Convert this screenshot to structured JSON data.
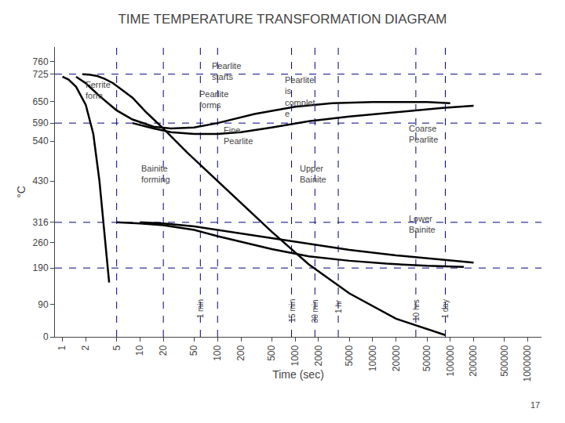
{
  "chart_data": {
    "type": "line",
    "title": "TIME TEMPERATURE TRANSFORMATION DIAGRAM",
    "xlabel": "Time (sec)",
    "ylabel": "°C",
    "log": "x",
    "grid": false,
    "xlim": [
      0.8,
      1500000
    ],
    "ylim": [
      0,
      800
    ],
    "xticks": [
      1,
      2,
      5,
      10,
      20,
      50,
      100,
      200,
      500,
      1000,
      2000,
      5000,
      10000,
      20000,
      50000,
      100000,
      200000,
      500000,
      1000000
    ],
    "yticks": [
      0,
      90,
      190,
      260,
      316,
      430,
      540,
      590,
      650,
      725,
      760
    ],
    "series": [
      {
        "color": "#000000",
        "x": [
          1.0,
          1.2,
          1.5,
          2.0,
          2.5,
          3.0,
          4.0
        ],
        "values": [
          718,
          710,
          690,
          640,
          560,
          430,
          150
        ]
      },
      {
        "color": "#000000",
        "x": [
          1.8,
          2.2,
          2.8,
          3.5,
          4.5,
          6.0,
          8.0,
          12.0,
          20.0,
          40.0,
          80.0,
          200.0,
          500.0,
          1500.0,
          5000.0,
          20000.0,
          86400.0
        ],
        "values": [
          725,
          724,
          720,
          712,
          700,
          680,
          660,
          620,
          575,
          510,
          450,
          370,
          290,
          200,
          120,
          50,
          5
        ]
      },
      {
        "color": "#000000",
        "x": [
          1.5,
          2.0,
          3.0,
          5.0,
          8.0,
          15.0,
          25.0,
          50.0,
          100.0,
          300.0,
          1000.0,
          3000.0,
          10000.0,
          50000.0,
          100000.0
        ],
        "values": [
          718,
          700,
          665,
          625,
          600,
          580,
          575,
          578,
          590,
          615,
          635,
          645,
          648,
          648,
          645
        ]
      },
      {
        "color": "#000000",
        "x": [
          8.0,
          15.0,
          25.0,
          50.0,
          100.0,
          200.0,
          500.0,
          1500.0,
          5000.0,
          20000.0,
          80000.0,
          200000.0
        ],
        "values": [
          590,
          575,
          565,
          560,
          560,
          565,
          578,
          595,
          608,
          620,
          632,
          638
        ]
      },
      {
        "color": "#000000",
        "x": [
          5.0,
          10.0,
          20.0,
          50.0,
          100.0,
          200.0,
          500.0,
          1500.0,
          5000.0,
          15000.0,
          50000.0,
          150000.0
        ],
        "values": [
          316,
          313,
          308,
          295,
          278,
          262,
          242,
          222,
          210,
          202,
          196,
          193
        ]
      },
      {
        "color": "#000000",
        "x": [
          10.0,
          20.0,
          50.0,
          200.0,
          1000.0,
          5000.0,
          20000.0,
          100000.0,
          200000.0
        ],
        "values": [
          316,
          313,
          305,
          285,
          262,
          240,
          225,
          210,
          205
        ]
      }
    ],
    "reference_lines": {
      "color": "#000080",
      "line_style": "dashed",
      "y": [
        725,
        590,
        316,
        190
      ],
      "x": [
        5,
        20,
        100
      ]
    },
    "time_marks": [
      {
        "x": 60,
        "y": 108,
        "label": "1 min"
      },
      {
        "x": 900,
        "y": 108,
        "label": "15 min"
      },
      {
        "x": 1800,
        "y": 108,
        "label": "30 min"
      },
      {
        "x": 3600,
        "y": 108,
        "label": "1 hr"
      },
      {
        "x": 36000,
        "y": 108,
        "label": "10 hrs"
      },
      {
        "x": 86400,
        "y": 108,
        "label": "1 day"
      }
    ],
    "annotations": [
      {
        "x": 80,
        "y": 700,
        "text": "Pearlite\nstarts"
      },
      {
        "x": 1.9,
        "y": 648,
        "text": "Ferrite\nform"
      },
      {
        "x": 55,
        "y": 622,
        "text": "Pearlite\nforms"
      },
      {
        "x": 115,
        "y": 523,
        "text": "Fine\nPearlite"
      },
      {
        "x": 700,
        "y": 598,
        "text": "Pearlite\nis\ncomplet\ne"
      },
      {
        "x": 28000,
        "y": 528,
        "text": "Coarse\nPearlite"
      },
      {
        "x": 10,
        "y": 418,
        "text": "Bainite\nforming"
      },
      {
        "x": 1100,
        "y": 418,
        "text": "Upper\nBainite"
      },
      {
        "x": 28000,
        "y": 278,
        "text": "Lower\nBainite"
      }
    ],
    "page_number": "17"
  }
}
